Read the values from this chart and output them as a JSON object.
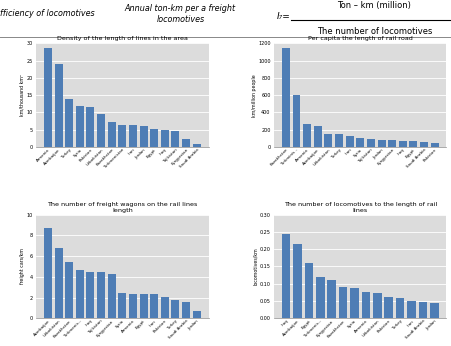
{
  "header_left": "Efficiency of locomotives",
  "header_mid": "Annual ton-km per a freight\nlocomotives",
  "header_right_pre": "I₇=",
  "header_right_num": "Ton – km (million)",
  "header_right_den": "The number of locomotives",
  "chart1_title": "Density of the length of lines in the area",
  "chart1_ylabel": "km/thousand km²",
  "chart1_countries": [
    "Armenia",
    "Azerbaijan",
    "Turkey",
    "Syria",
    "Pakistan",
    "Uzbekistan",
    "Kazakhstan",
    "Turkmenistan",
    "Iran",
    "Jordan",
    "Egypt",
    "Iraq",
    "Tajikistan",
    "Kyrgyzstan",
    "Saudi Arabia"
  ],
  "chart1_values": [
    28.5,
    24.0,
    13.8,
    11.8,
    11.7,
    9.6,
    7.1,
    6.5,
    6.3,
    6.0,
    5.2,
    5.0,
    4.5,
    2.2,
    0.8
  ],
  "chart1_ylim": [
    0,
    30
  ],
  "chart1_yticks": [
    0,
    5.0,
    10.0,
    15.0,
    20.0,
    25.0,
    30.0
  ],
  "chart2_title": "Per capita the length of rail road",
  "chart2_ylabel": "km/million people",
  "chart2_countries": [
    "Kazakhstan",
    "Turkminis...",
    "Armenia",
    "Azerbaijan",
    "Uzbekistan",
    "Turkey",
    "Iran",
    "Syria",
    "Tajikistan",
    "Jordan",
    "Kyrgyzstan",
    "Iraq",
    "Egypt",
    "Saudi Arabia",
    "Pakistan"
  ],
  "chart2_values": [
    1140,
    600,
    265,
    240,
    155,
    150,
    130,
    100,
    88,
    82,
    80,
    72,
    68,
    55,
    50
  ],
  "chart2_ylim": [
    0,
    1200
  ],
  "chart2_yticks": [
    0,
    200,
    400,
    600,
    800,
    1000,
    1200
  ],
  "chart3_title": "The number of freight wagons on the rail lines\nlength",
  "chart3_ylabel": "freight cars/km",
  "chart3_countries": [
    "Azerbaijan",
    "Uzbekistan",
    "Kazakhstan",
    "Turkmenis...",
    "Iraq",
    "Tajikistan",
    "Kyrgyzstan",
    "Syria",
    "Armenia",
    "Egypt",
    "Iran",
    "Pakistan",
    "Turkey",
    "Saudi Arabia",
    "Jordan"
  ],
  "chart3_values": [
    8.7,
    6.8,
    5.4,
    4.7,
    4.5,
    4.5,
    4.3,
    2.4,
    2.3,
    2.3,
    2.3,
    2.1,
    1.8,
    1.6,
    0.7
  ],
  "chart3_ylim": [
    0,
    10
  ],
  "chart3_yticks": [
    0,
    2,
    4,
    6,
    8,
    10
  ],
  "chart4_title": "The number of locomotives to the length of rail\nlines",
  "chart4_ylabel": "locomotives/km",
  "chart4_countries": [
    "Iraq",
    "Azerbaijan",
    "Egypt",
    "Turkmenis...",
    "Kyrgyzstan",
    "Kazakhstan",
    "Syria",
    "Armenia",
    "Uzbekistan",
    "Pakistan",
    "Turkey",
    "Iran",
    "Saudi Arabia",
    "Jordan"
  ],
  "chart4_values": [
    0.245,
    0.215,
    0.16,
    0.12,
    0.11,
    0.09,
    0.088,
    0.075,
    0.072,
    0.062,
    0.06,
    0.05,
    0.046,
    0.045
  ],
  "chart4_ylim": [
    0,
    0.3
  ],
  "chart4_yticks": [
    0,
    0.05,
    0.1,
    0.15,
    0.2,
    0.25,
    0.3
  ],
  "bar_color": "#4E7DB5",
  "bg_color": "#DCDCDC",
  "fig_bg": "#FFFFFF",
  "grid_color": "#FFFFFF"
}
